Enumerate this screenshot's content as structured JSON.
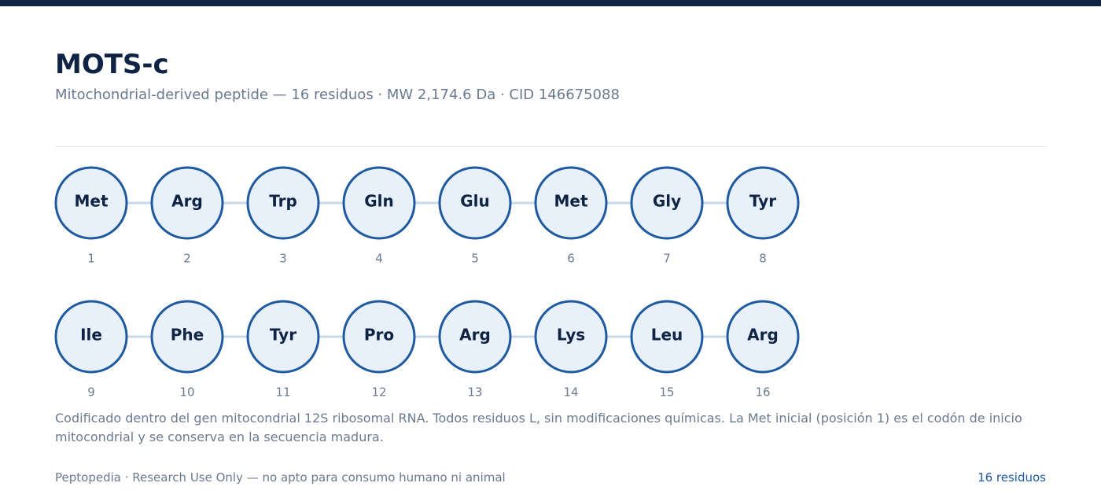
{
  "header": {
    "title": "MOTS-c",
    "subtitle": "Mitochondrial-derived peptide — 16 residuos · MW 2,174.6 Da · CID 146675088"
  },
  "residues": [
    {
      "name": "Met",
      "position": 1
    },
    {
      "name": "Arg",
      "position": 2
    },
    {
      "name": "Trp",
      "position": 3
    },
    {
      "name": "Gln",
      "position": 4
    },
    {
      "name": "Glu",
      "position": 5
    },
    {
      "name": "Met",
      "position": 6
    },
    {
      "name": "Gly",
      "position": 7
    },
    {
      "name": "Tyr",
      "position": 8
    },
    {
      "name": "Ile",
      "position": 9
    },
    {
      "name": "Phe",
      "position": 10
    },
    {
      "name": "Tyr",
      "position": 11
    },
    {
      "name": "Pro",
      "position": 12
    },
    {
      "name": "Arg",
      "position": 13
    },
    {
      "name": "Lys",
      "position": 14
    },
    {
      "name": "Leu",
      "position": 15
    },
    {
      "name": "Arg",
      "position": 16
    }
  ],
  "note": "Codificado dentro del gen mitocondrial 12S ribosomal RNA. Todos residuos L, sin modificaciones químicas. La Met inicial (posición 1) es el codón de inicio mitocondrial y se conserva en la secuencia madura.",
  "footer": {
    "left": "Peptopedia · Research Use Only — no apto para consumo humano ni animal",
    "right": "16 residuos"
  }
}
